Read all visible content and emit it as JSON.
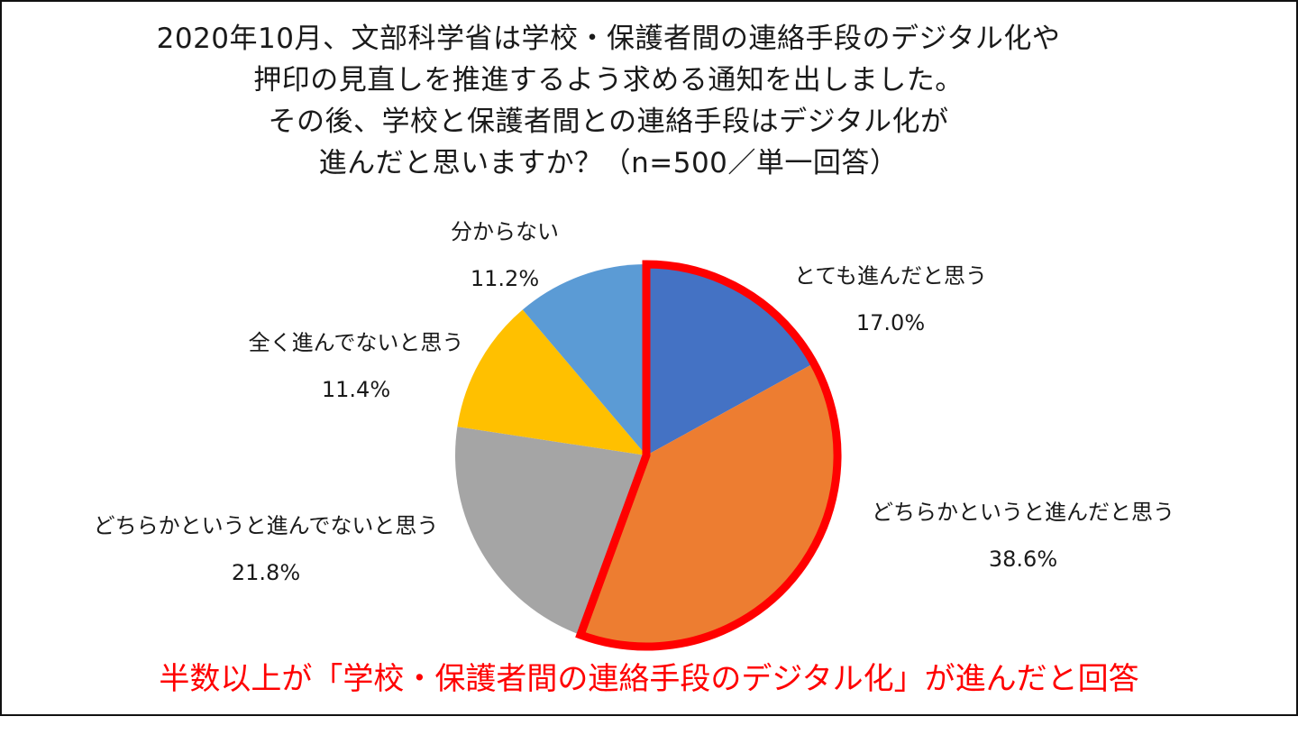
{
  "title": {
    "lines": [
      "2020年10月、文部科学省は学校・保護者間の連絡手段のデジタル化や",
      "押印の見直しを推進するよう求める通知を出しました。",
      "その後、学校と保護者間との連絡手段はデジタル化が",
      "進んだと思いますか？（n=500／単一回答）"
    ]
  },
  "slices": [
    {
      "label": "とても進んだと思う",
      "value_text": "17.0%",
      "value": 17.0,
      "color": "#4472C4"
    },
    {
      "label": "どちらかというと進んだと思う",
      "value_text": "38.6%",
      "value": 38.6,
      "color": "#ED7D31"
    },
    {
      "label": "どちらかというと進んでないと思う",
      "value_text": "21.8%",
      "value": 21.8,
      "color": "#A5A5A5"
    },
    {
      "label": "全く進んでないと思う",
      "value_text": "11.4%",
      "value": 11.4,
      "color": "#FFC000"
    },
    {
      "label": "分からない",
      "value_text": "11.2%",
      "value": 11.2,
      "color": "#5B9BD5"
    }
  ],
  "highlight": {
    "color": "#FF0000",
    "slices": [
      0,
      1
    ]
  },
  "conclusion": "半数以上が「学校・保護者間の連絡手段のデジタル化」が進んだと回答",
  "chart_data": {
    "type": "pie",
    "title": "2020年10月、文部科学省は学校・保護者間の連絡手段のデジタル化や押印の見直しを推進するよう求める通知を出しました。その後、学校と保護者間との連絡手段はデジタル化が進んだと思いますか？（n=500／単一回答）",
    "categories": [
      "とても進んだと思う",
      "どちらかというと進んだと思う",
      "どちらかというと進んでないと思う",
      "全く進んでないと思う",
      "分からない"
    ],
    "values": [
      17.0,
      38.6,
      21.8,
      11.4,
      11.2
    ],
    "colors": [
      "#4472C4",
      "#ED7D31",
      "#A5A5A5",
      "#FFC000",
      "#5B9BD5"
    ],
    "unit": "%",
    "n": 500,
    "start_angle": "12 o'clock, clockwise",
    "highlighted": [
      "とても進んだと思う",
      "どちらかというと進んだと思う"
    ],
    "annotation": "半数以上が「学校・保護者間の連絡手段のデジタル化」が進んだと回答",
    "legend": "none (data labels beside slices)"
  }
}
